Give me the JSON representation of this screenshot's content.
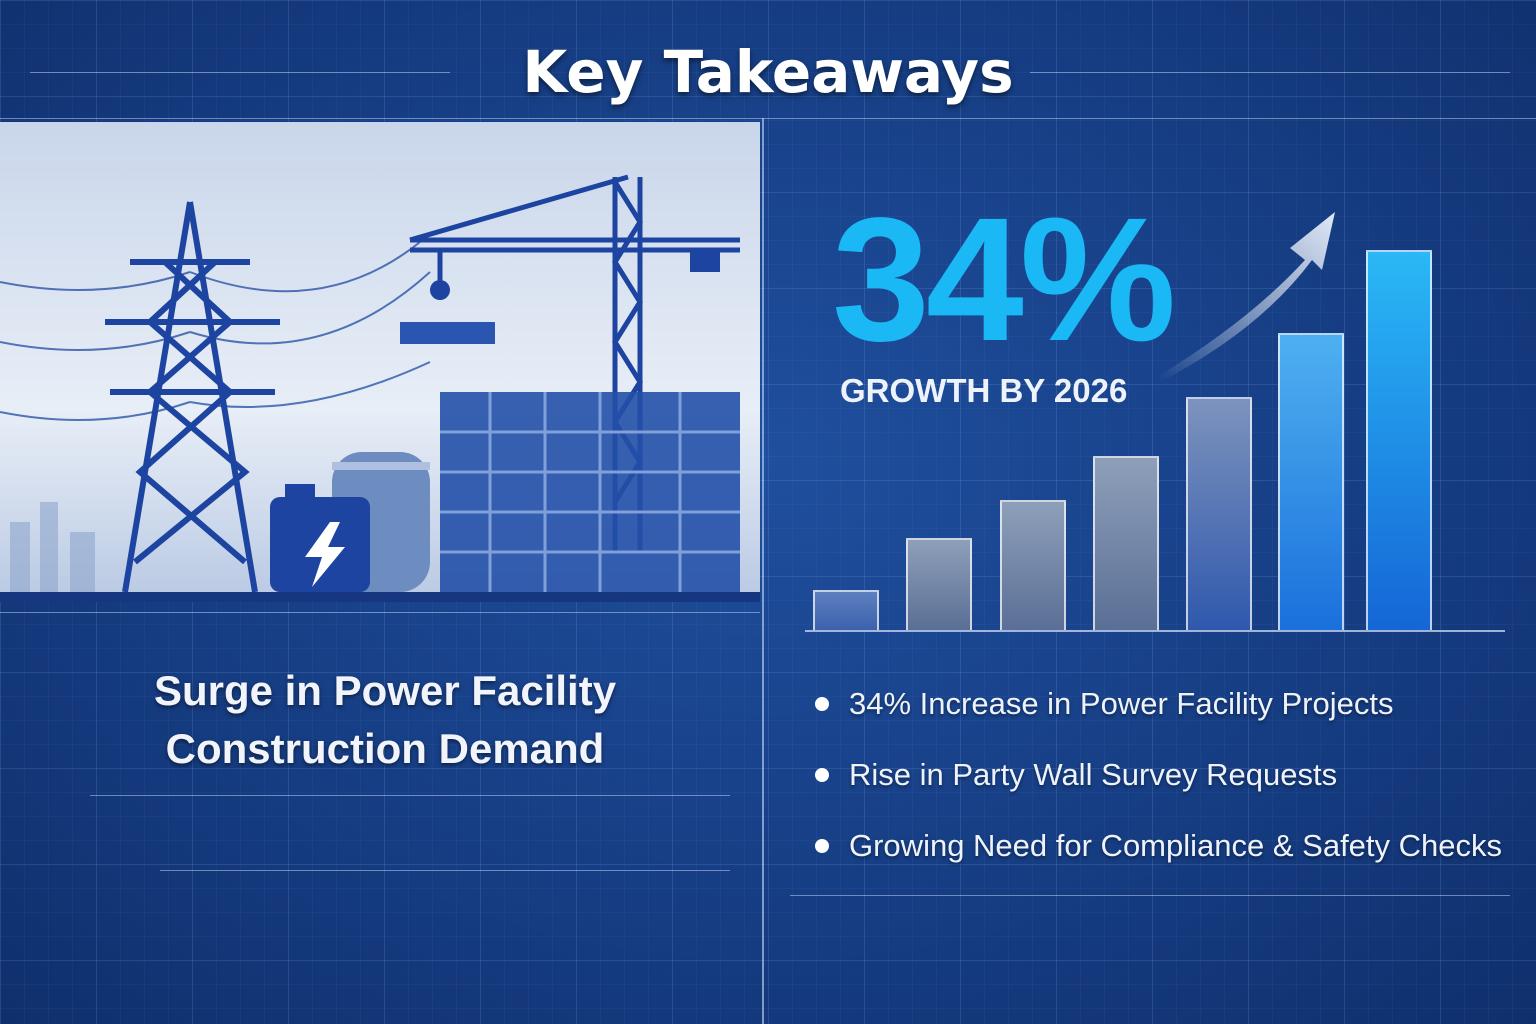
{
  "title": "Key Takeaways",
  "left": {
    "headline_line1": "Surge in Power Facility",
    "headline_line2": "Construction Demand",
    "icons": [
      "transmission-tower-icon",
      "crane-icon",
      "battery-lightning-icon",
      "storage-tank-icon",
      "building-frame-icon"
    ]
  },
  "right": {
    "stat": "34%",
    "stat_caption": "GROWTH BY 2026",
    "bullets": [
      "34% Increase in Power Facility Projects",
      "Rise in Party Wall Survey Requests",
      "Growing Need for Compliance & Safety Checks"
    ]
  },
  "colors": {
    "background": "#173f86",
    "accent": "#1ab8f5",
    "text": "#ffffff"
  }
}
